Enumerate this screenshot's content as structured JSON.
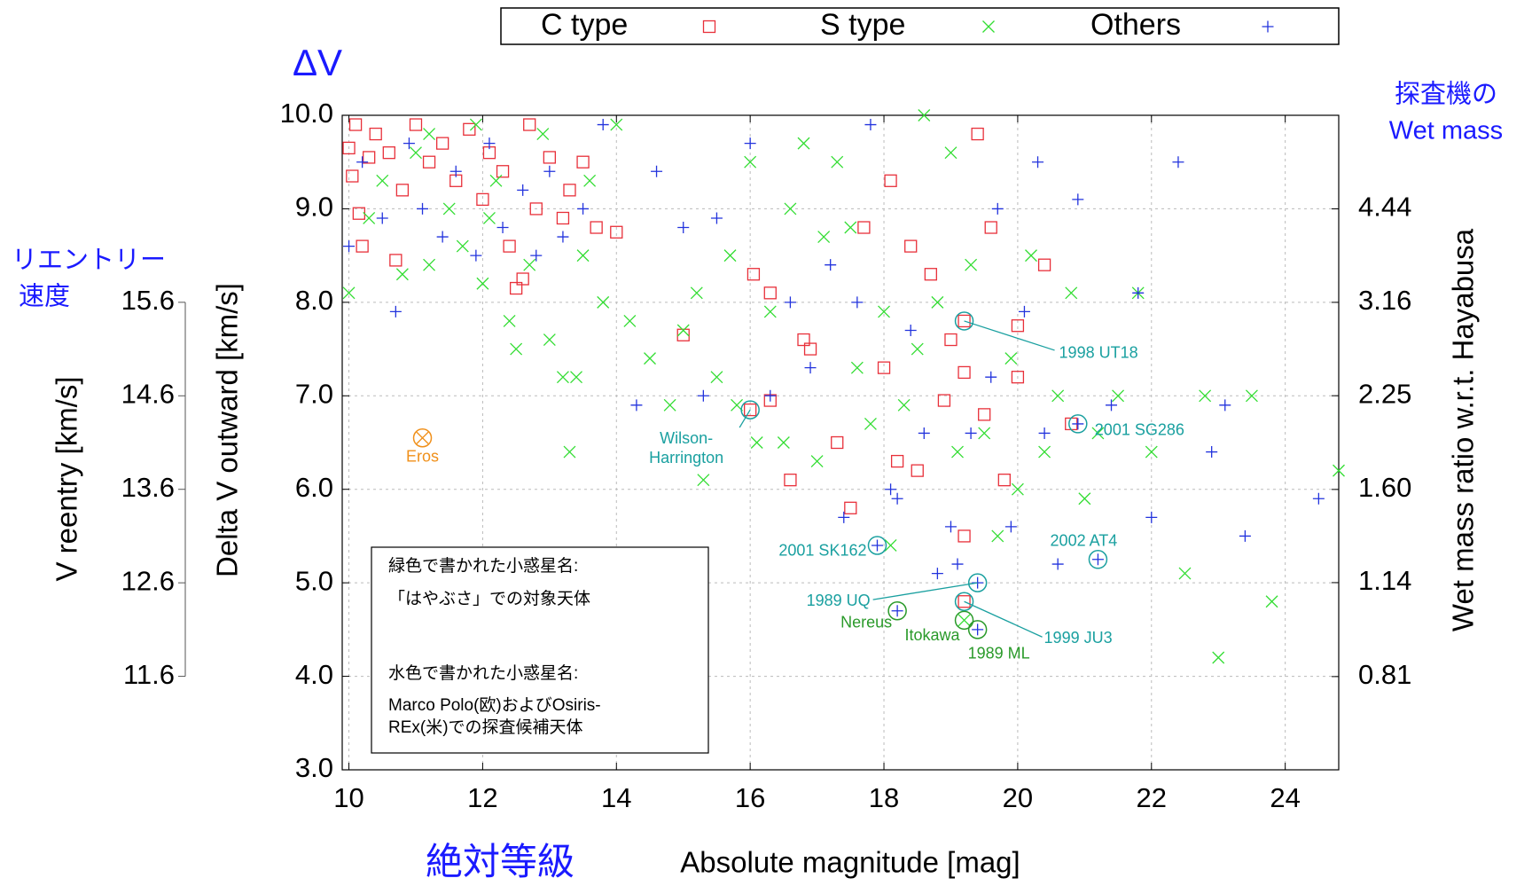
{
  "chart_data": {
    "type": "scatter",
    "xlabel": "Absolute magnitude [mag]",
    "ylabel": "Delta V outward [km/s]",
    "xlim": [
      9.9,
      24.8
    ],
    "xticks": [
      10,
      12,
      14,
      16,
      18,
      20,
      22,
      24
    ],
    "ylim": [
      3,
      10
    ],
    "yticks": [
      {
        "value": 3,
        "label": "3.0"
      },
      {
        "value": 4,
        "label": "4.0"
      },
      {
        "value": 5,
        "label": "5.0"
      },
      {
        "value": 6,
        "label": "6.0"
      },
      {
        "value": 7,
        "label": "7.0"
      },
      {
        "value": 8,
        "label": "8.0"
      },
      {
        "value": 9,
        "label": "9.0"
      },
      {
        "value": 10,
        "label": "10.0"
      }
    ],
    "grid": true,
    "y2label": "Wet mass ratio w.r.t. Hayabusa",
    "y2log": true,
    "y2lim": [
      0.577,
      6.24
    ],
    "y2ticks": [
      0.81,
      1.14,
      {
        "value": 1.6,
        "label": "1.60"
      },
      2.25,
      3.16,
      4.44
    ],
    "reentry_axis": {
      "label": "V reentry [km/s]",
      "ylim": [
        10.6,
        17.6
      ],
      "ticks": [
        11.6,
        12.6,
        13.6,
        14.6,
        15.6
      ]
    },
    "jp_labels": {
      "delta_v": "ΔV",
      "wet_mass": [
        "探査機の",
        "Wet mass"
      ],
      "reentry": [
        "リエントリー",
        "速度"
      ],
      "magnitude": "絶対等級"
    },
    "legend": "top",
    "series": [
      {
        "name": "C type",
        "color": "#e8303a",
        "marker": "square",
        "x": [
          10.0,
          10.05,
          10.1,
          10.15,
          10.2,
          10.3,
          10.4,
          10.6,
          10.7,
          10.8,
          11.0,
          11.2,
          11.4,
          11.6,
          11.8,
          12.0,
          12.1,
          12.3,
          12.4,
          12.5,
          12.6,
          12.7,
          12.8,
          13.0,
          13.2,
          13.3,
          13.5,
          13.7,
          14.0,
          15.0,
          16.0,
          16.05,
          16.3,
          16.3,
          16.6,
          16.8,
          17.3,
          17.5,
          18.0,
          18.1,
          18.2,
          18.5,
          18.9,
          19.0,
          19.2,
          19.2,
          19.4,
          19.5,
          19.6,
          19.8,
          20.0,
          20.0,
          20.4,
          20.8,
          18.4,
          18.7,
          17.7,
          19.2,
          19.2,
          16.9
        ],
        "values": [
          9.65,
          9.35,
          9.9,
          8.95,
          8.6,
          9.55,
          9.8,
          9.6,
          8.45,
          9.2,
          9.9,
          9.5,
          9.7,
          9.3,
          9.85,
          9.1,
          9.6,
          9.4,
          8.6,
          8.15,
          8.25,
          9.9,
          9.0,
          9.55,
          8.9,
          9.2,
          9.5,
          8.8,
          8.75,
          7.65,
          6.85,
          8.3,
          8.1,
          6.95,
          6.1,
          7.6,
          6.5,
          5.8,
          7.3,
          9.3,
          6.3,
          6.2,
          6.95,
          7.6,
          7.8,
          5.5,
          9.8,
          6.8,
          8.8,
          6.1,
          7.2,
          7.75,
          8.4,
          6.7,
          8.6,
          8.3,
          8.8,
          7.25,
          4.8,
          7.5
        ]
      },
      {
        "name": "S type",
        "color": "#33dd33",
        "marker": "x",
        "x": [
          10.0,
          10.3,
          10.5,
          10.8,
          11.0,
          11.2,
          11.5,
          11.7,
          11.9,
          12.0,
          12.2,
          12.4,
          12.5,
          12.7,
          13.0,
          13.2,
          13.4,
          13.5,
          13.8,
          14.2,
          14.5,
          14.8,
          15.0,
          15.2,
          15.3,
          15.5,
          15.7,
          15.8,
          16.0,
          16.1,
          16.3,
          16.5,
          16.6,
          16.8,
          17.0,
          17.1,
          17.3,
          17.5,
          17.6,
          17.8,
          18.0,
          18.1,
          18.3,
          18.5,
          18.6,
          18.8,
          19.0,
          19.1,
          19.3,
          19.5,
          19.7,
          19.9,
          20.0,
          20.2,
          20.4,
          20.6,
          20.8,
          21.0,
          21.2,
          21.5,
          21.8,
          22.0,
          22.5,
          22.8,
          23.0,
          23.5,
          23.8,
          24.8,
          13.3,
          11.2,
          12.9,
          12.1,
          19.2,
          14.0,
          13.6
        ],
        "values": [
          8.1,
          8.9,
          9.3,
          8.3,
          9.6,
          8.4,
          9.0,
          8.6,
          9.9,
          8.2,
          9.3,
          7.8,
          7.5,
          8.4,
          7.6,
          7.2,
          7.2,
          8.5,
          8.0,
          7.8,
          7.4,
          6.9,
          7.7,
          8.1,
          6.1,
          7.2,
          8.5,
          6.9,
          9.5,
          6.5,
          7.9,
          6.5,
          9.0,
          9.7,
          6.3,
          8.7,
          9.5,
          8.8,
          7.3,
          6.7,
          7.9,
          5.4,
          6.9,
          7.5,
          10.0,
          8.0,
          9.6,
          6.4,
          8.4,
          6.6,
          5.5,
          7.4,
          6.0,
          8.5,
          6.4,
          7.0,
          8.1,
          5.9,
          6.6,
          7.0,
          8.1,
          6.4,
          5.1,
          7.0,
          4.2,
          7.0,
          4.8,
          6.2,
          6.4,
          9.8,
          9.8,
          8.9,
          4.6,
          9.9,
          9.3
        ]
      },
      {
        "name": "Others",
        "color": "#2233dd",
        "marker": "plus",
        "x": [
          10.0,
          10.2,
          10.5,
          10.7,
          10.9,
          11.1,
          11.4,
          11.6,
          11.9,
          12.1,
          12.3,
          12.6,
          12.8,
          13.0,
          13.2,
          13.5,
          13.8,
          14.3,
          14.6,
          15.0,
          15.3,
          15.5,
          16.0,
          16.3,
          16.6,
          16.9,
          17.2,
          17.4,
          17.6,
          17.8,
          17.9,
          18.1,
          18.2,
          18.4,
          18.6,
          18.8,
          19.0,
          19.1,
          19.3,
          19.4,
          19.4,
          19.7,
          19.9,
          20.1,
          20.3,
          20.4,
          20.6,
          20.9,
          20.9,
          21.2,
          21.4,
          21.8,
          22.0,
          22.4,
          22.9,
          23.1,
          23.4,
          24.5,
          18.2,
          19.6
        ],
        "values": [
          8.6,
          9.5,
          8.9,
          7.9,
          9.7,
          9.0,
          8.7,
          9.4,
          8.5,
          9.7,
          8.8,
          9.2,
          8.5,
          9.4,
          8.7,
          9.0,
          9.9,
          6.9,
          9.4,
          8.8,
          7.0,
          8.9,
          9.7,
          7.0,
          8.0,
          7.3,
          8.4,
          5.7,
          8.0,
          9.9,
          5.4,
          6.0,
          5.9,
          7.7,
          6.6,
          5.1,
          5.6,
          5.2,
          6.6,
          5.0,
          4.5,
          9.0,
          5.6,
          7.9,
          9.5,
          6.6,
          5.2,
          9.1,
          6.7,
          5.25,
          6.9,
          8.1,
          5.7,
          9.5,
          6.4,
          6.9,
          5.5,
          5.9,
          4.7,
          7.2
        ]
      }
    ],
    "annotations": [
      {
        "label": [
          "Eros"
        ],
        "x": 11.1,
        "y": 6.55,
        "color": "#f0901a"
      },
      {
        "label": [
          "Wilson-",
          "Harrington"
        ],
        "x": 16.0,
        "y": 6.85,
        "color": "#1aa0a0"
      },
      {
        "label": [
          "1998 UT18"
        ],
        "x": 19.2,
        "y": 7.8,
        "color": "#1aa0a0"
      },
      {
        "label": [
          "2001 SG286"
        ],
        "x": 20.9,
        "y": 6.7,
        "color": "#1aa0a0"
      },
      {
        "label": [
          "2001 SK162"
        ],
        "x": 17.9,
        "y": 5.4,
        "color": "#1aa0a0"
      },
      {
        "label": [
          "2002 AT4"
        ],
        "x": 21.2,
        "y": 5.25,
        "color": "#1aa0a0"
      },
      {
        "label": [
          "1989 UQ"
        ],
        "x": 19.4,
        "y": 5.0,
        "color": "#1aa0a0"
      },
      {
        "label": [
          "1999 JU3"
        ],
        "x": 19.2,
        "y": 4.8,
        "color": "#1aa0a0"
      },
      {
        "label": [
          "Nereus"
        ],
        "x": 18.2,
        "y": 4.7,
        "color": "#2a9a2a"
      },
      {
        "label": [
          "Itokawa"
        ],
        "x": 19.2,
        "y": 4.6,
        "color": "#2a9a2a"
      },
      {
        "label": [
          "1989 ML"
        ],
        "x": 19.4,
        "y": 4.5,
        "color": "#2a9a2a"
      }
    ],
    "note": [
      "緑色で書かれた小惑星名:",
      "「はやぶさ」での対象天体",
      "水色で書かれた小惑星名:",
      "Marco Polo(欧)およびOsiris-",
      "REx(米)での探査候補天体"
    ]
  }
}
